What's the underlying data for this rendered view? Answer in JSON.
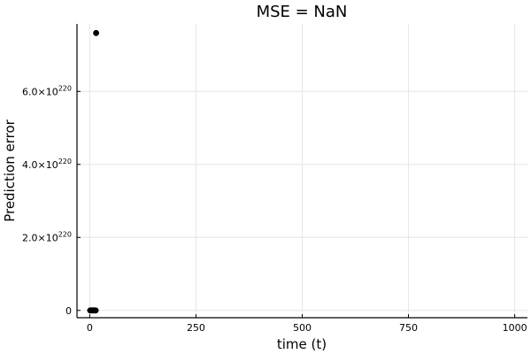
{
  "chart_data": {
    "type": "scatter",
    "title": "MSE = NaN",
    "xlabel": "time (t)",
    "ylabel": "Prediction error",
    "xlim": [
      -30,
      1030
    ],
    "ylim": [
      -2e+219,
      7.85e+220
    ],
    "x_ticks": [
      {
        "value": 0,
        "label": "0"
      },
      {
        "value": 250,
        "label": "250"
      },
      {
        "value": 500,
        "label": "500"
      },
      {
        "value": 750,
        "label": "750"
      },
      {
        "value": 1000,
        "label": "1000"
      }
    ],
    "y_ticks": [
      {
        "value": 0,
        "mantissa": "0",
        "exponent": ""
      },
      {
        "value": 2e+220,
        "mantissa": "2.0×10",
        "exponent": "220"
      },
      {
        "value": 4e+220,
        "mantissa": "4.0×10",
        "exponent": "220"
      },
      {
        "value": 6e+220,
        "mantissa": "6.0×10",
        "exponent": "220"
      }
    ],
    "grid": true,
    "legend": "none",
    "marker_color": "#000000",
    "series": [
      {
        "x": [
          1,
          2,
          3,
          4,
          5,
          6,
          7,
          8,
          9,
          10,
          11,
          12,
          13,
          14,
          15
        ],
        "y": [
          0,
          0,
          0,
          0,
          0,
          0,
          0,
          0,
          0,
          0,
          0,
          0,
          0,
          0,
          7.6e+220
        ]
      }
    ]
  }
}
